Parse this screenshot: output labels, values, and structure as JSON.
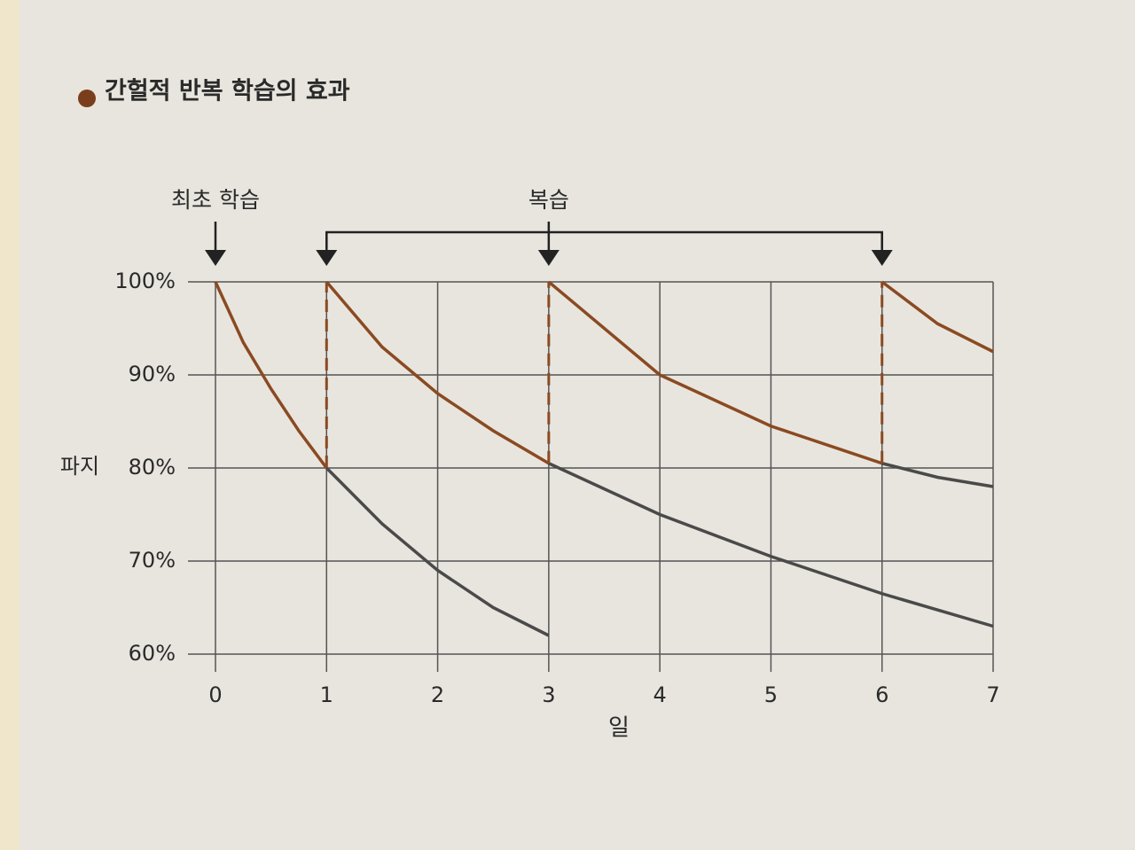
{
  "chart_data": {
    "type": "line",
    "title": "간헐적 반복 학습의 효과",
    "xlabel": "일",
    "ylabel": "파지",
    "xlim": [
      0,
      7
    ],
    "xticks": [
      0,
      1,
      2,
      3,
      4,
      5,
      6,
      7
    ],
    "ylim": [
      60,
      100
    ],
    "yticks": [
      {
        "value": 60,
        "label": "60%"
      },
      {
        "value": 70,
        "label": "70%"
      },
      {
        "value": 80,
        "label": "80%"
      },
      {
        "value": 90,
        "label": "90%"
      },
      {
        "value": 100,
        "label": "100%"
      }
    ],
    "grid": true,
    "annotations": [
      {
        "text": "최초 학습",
        "x": [
          0
        ]
      },
      {
        "text": "복습",
        "x": [
          1,
          3,
          6
        ]
      }
    ],
    "series": [
      {
        "color": "#8a4a22",
        "x": [
          0,
          0.25,
          0.5,
          0.75,
          1
        ],
        "values": [
          100,
          93.5,
          88.5,
          84,
          80
        ]
      },
      {
        "color": "#4a4a4a",
        "x": [
          1,
          1.5,
          2,
          2.5,
          3
        ],
        "values": [
          80,
          74,
          69,
          65,
          62
        ]
      },
      {
        "color": "#8a4a22",
        "x": [
          1,
          1.5,
          2,
          2.5,
          3
        ],
        "values": [
          100,
          93,
          88,
          84,
          80.5
        ]
      },
      {
        "color": "#4a4a4a",
        "x": [
          3,
          4,
          5,
          6,
          7
        ],
        "values": [
          80.5,
          75,
          70.5,
          66.5,
          63
        ]
      },
      {
        "color": "#8a4a22",
        "x": [
          3,
          4,
          5,
          6
        ],
        "values": [
          100,
          90,
          84.5,
          80.5
        ]
      },
      {
        "color": "#4a4a4a",
        "x": [
          6,
          6.5,
          7
        ],
        "values": [
          80.5,
          79,
          78
        ]
      },
      {
        "color": "#8a4a22",
        "x": [
          6,
          6.5,
          7
        ],
        "values": [
          100,
          95.5,
          92.5
        ]
      },
      {
        "color": "#8a4a22",
        "dash": true,
        "x": [
          1,
          1
        ],
        "values": [
          80,
          100
        ]
      },
      {
        "color": "#8a4a22",
        "dash": true,
        "x": [
          3,
          3
        ],
        "values": [
          80.5,
          100
        ]
      },
      {
        "color": "#8a4a22",
        "dash": true,
        "x": [
          6,
          6
        ],
        "values": [
          80.5,
          100
        ]
      }
    ]
  }
}
